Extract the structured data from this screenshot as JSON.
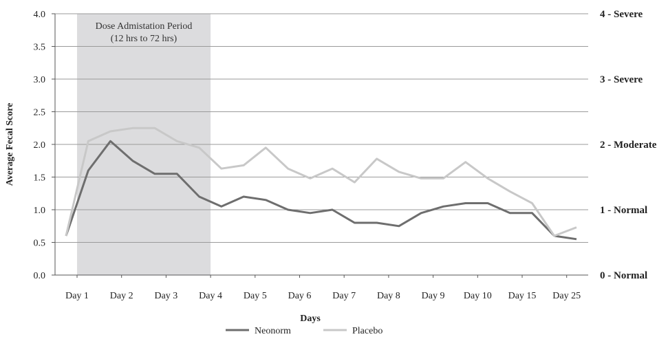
{
  "chart_data": {
    "type": "line",
    "xlabel": "Days",
    "ylabel": "Average Fecal Score",
    "ylim": [
      0,
      4
    ],
    "yticks": [
      "0.0",
      "0.5",
      "1.0",
      "1.5",
      "2.0",
      "2.5",
      "3.0",
      "3.5",
      "4.0"
    ],
    "grid": true,
    "x_labels": [
      "Day 1",
      "Day 2",
      "Day 3",
      "Day 4",
      "Day 5",
      "Day 6",
      "Day 7",
      "Day 8",
      "Day 9",
      "Day 10",
      "Day 15",
      "Day 25"
    ],
    "right_axis_labels": [
      {
        "value": 4,
        "text": "4 - Severe"
      },
      {
        "value": 3,
        "text": "3 - Severe"
      },
      {
        "value": 2,
        "text": "2 - Moderate"
      },
      {
        "value": 1,
        "text": "1 - Normal"
      },
      {
        "value": 0,
        "text": "0 - Normal"
      }
    ],
    "annotation": {
      "line1": "Dose Admistation Period",
      "line2": "(12 hrs to 72 hrs)",
      "color": "#dcdcde"
    },
    "legend_position": "bottom-center",
    "series": [
      {
        "name": "Neonorm",
        "color": "#6e6e6e",
        "values": [
          0.6,
          1.6,
          2.05,
          1.75,
          1.55,
          1.55,
          1.2,
          1.05,
          1.2,
          1.15,
          1.0,
          0.95,
          1.0,
          0.8,
          0.8,
          0.75,
          0.95,
          1.05,
          1.1,
          1.1,
          0.95,
          0.95,
          0.6,
          0.55
        ]
      },
      {
        "name": "Placebo",
        "color": "#c8c8c8",
        "values": [
          0.6,
          2.05,
          2.2,
          2.25,
          2.25,
          2.05,
          1.95,
          1.63,
          1.68,
          1.95,
          1.63,
          1.48,
          1.63,
          1.42,
          1.78,
          1.58,
          1.48,
          1.48,
          1.73,
          1.48,
          1.28,
          1.1,
          0.6,
          0.73
        ]
      }
    ]
  }
}
